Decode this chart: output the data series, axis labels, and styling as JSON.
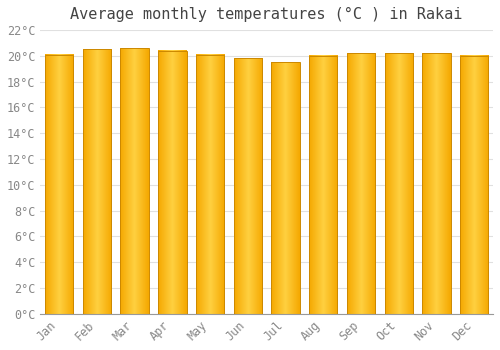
{
  "title": "Average monthly temperatures (°C ) in Rakai",
  "months": [
    "Jan",
    "Feb",
    "Mar",
    "Apr",
    "May",
    "Jun",
    "Jul",
    "Aug",
    "Sep",
    "Oct",
    "Nov",
    "Dec"
  ],
  "values": [
    20.1,
    20.5,
    20.6,
    20.4,
    20.1,
    19.8,
    19.5,
    20.0,
    20.2,
    20.2,
    20.2,
    20.0
  ],
  "bar_color_edge": "#F5A800",
  "bar_color_center": "#FFD040",
  "bar_edge_color": "#CC8800",
  "background_color": "#FFFFFF",
  "plot_bg_color": "#FFFFFF",
  "grid_color": "#E0E0E0",
  "ytick_labels": [
    "0°C",
    "2°C",
    "4°C",
    "6°C",
    "8°C",
    "10°C",
    "12°C",
    "14°C",
    "16°C",
    "18°C",
    "20°C",
    "22°C"
  ],
  "ytick_values": [
    0,
    2,
    4,
    6,
    8,
    10,
    12,
    14,
    16,
    18,
    20,
    22
  ],
  "ylim": [
    0,
    22
  ],
  "title_fontsize": 11,
  "tick_fontsize": 8.5,
  "font_family": "monospace"
}
